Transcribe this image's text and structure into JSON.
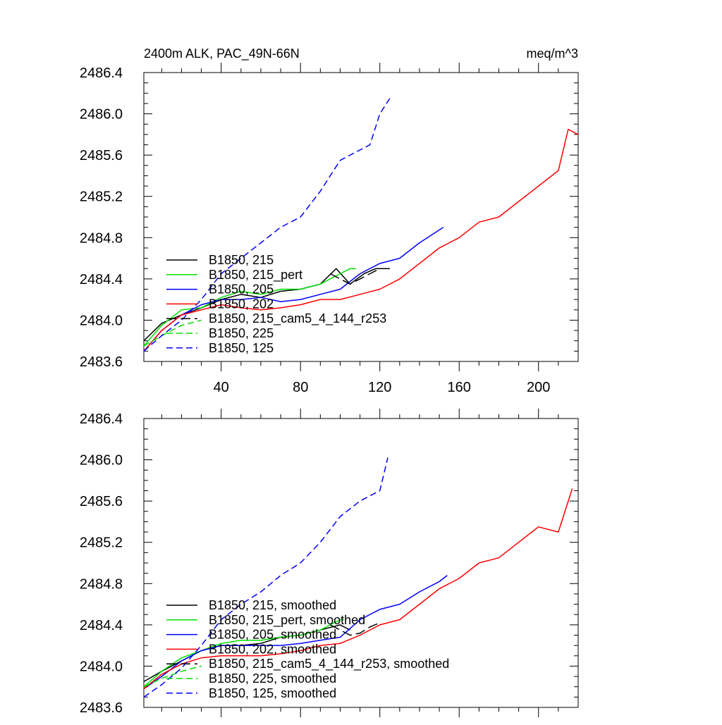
{
  "colors": {
    "black": "#000000",
    "green": "#00e000",
    "blue": "#0000ff",
    "red": "#ff0000"
  },
  "chart_data": [
    {
      "type": "line",
      "title": "2400m ALK, PAC_49N-66N",
      "units": "meq/m^3",
      "xlim": [
        1,
        220
      ],
      "ylim": [
        2483.6,
        2486.4
      ],
      "x_ticks": [
        "40",
        "80",
        "120",
        "160",
        "200"
      ],
      "x_tick_values": [
        40,
        80,
        120,
        160,
        200
      ],
      "y_ticks": [
        "2483.6",
        "2484.0",
        "2484.4",
        "2484.8",
        "2485.2",
        "2485.6",
        "2486.0",
        "2486.4"
      ],
      "y_tick_values": [
        2483.6,
        2484.0,
        2484.4,
        2484.8,
        2485.2,
        2485.6,
        2486.0,
        2486.4
      ],
      "legend_position": "lower-left",
      "series": [
        {
          "name": "B1850, 215",
          "color": "black",
          "dash": "solid",
          "x": [
            1,
            10,
            20,
            30,
            40,
            50,
            60,
            70,
            80,
            90,
            98,
            105,
            112,
            118,
            125
          ],
          "y": [
            2483.8,
            2483.97,
            2484.05,
            2484.12,
            2484.2,
            2484.25,
            2484.22,
            2484.28,
            2484.3,
            2484.35,
            2484.5,
            2484.35,
            2484.45,
            2484.5,
            2484.5
          ]
        },
        {
          "name": "B1850, 215_pert",
          "color": "green",
          "dash": "solid",
          "x": [
            1,
            10,
            20,
            30,
            40,
            50,
            60,
            70,
            80,
            90,
            100,
            105,
            108
          ],
          "y": [
            2483.75,
            2483.95,
            2484.1,
            2484.12,
            2484.22,
            2484.28,
            2484.25,
            2484.3,
            2484.3,
            2484.35,
            2484.45,
            2484.5,
            2484.5
          ]
        },
        {
          "name": "B1850, 205",
          "color": "blue",
          "dash": "solid",
          "x": [
            1,
            10,
            20,
            30,
            40,
            50,
            60,
            70,
            80,
            90,
            100,
            110,
            120,
            130,
            140,
            148,
            152
          ],
          "y": [
            2483.7,
            2483.9,
            2484.05,
            2484.15,
            2484.2,
            2484.2,
            2484.22,
            2484.18,
            2484.2,
            2484.25,
            2484.3,
            2484.45,
            2484.55,
            2484.6,
            2484.75,
            2484.85,
            2484.9
          ]
        },
        {
          "name": "B1850, 202",
          "color": "red",
          "dash": "solid",
          "x": [
            1,
            10,
            20,
            30,
            40,
            50,
            60,
            70,
            80,
            90,
            100,
            110,
            120,
            130,
            140,
            150,
            160,
            170,
            180,
            190,
            200,
            210,
            215,
            220
          ],
          "y": [
            2483.7,
            2483.9,
            2484.05,
            2484.1,
            2484.15,
            2484.12,
            2484.1,
            2484.12,
            2484.15,
            2484.2,
            2484.2,
            2484.25,
            2484.3,
            2484.4,
            2484.55,
            2484.7,
            2484.8,
            2484.95,
            2485.0,
            2485.15,
            2485.3,
            2485.45,
            2485.85,
            2485.8
          ]
        },
        {
          "name": "B1850, 215_cam5_4_144_r253",
          "color": "black",
          "dash": "longdash",
          "x": [
            95,
            100,
            105,
            110,
            115,
            120,
            125
          ],
          "y": [
            2484.45,
            2484.4,
            2484.35,
            2484.4,
            2484.45,
            2484.5,
            2484.5
          ]
        },
        {
          "name": "B1850, 225",
          "color": "green",
          "dash": "dash",
          "x": [
            1,
            10,
            20,
            30
          ],
          "y": [
            2483.75,
            2483.85,
            2483.95,
            2484.0
          ]
        },
        {
          "name": "B1850, 125",
          "color": "blue",
          "dash": "dash",
          "x": [
            1,
            10,
            20,
            30,
            40,
            50,
            60,
            70,
            80,
            90,
            100,
            110,
            115,
            120,
            125
          ],
          "y": [
            2483.7,
            2483.85,
            2484.0,
            2484.2,
            2484.45,
            2484.6,
            2484.75,
            2484.9,
            2485.0,
            2485.25,
            2485.55,
            2485.65,
            2485.7,
            2486.0,
            2486.15
          ]
        }
      ]
    },
    {
      "type": "line",
      "xlim": [
        1,
        220
      ],
      "ylim": [
        2483.6,
        2486.4
      ],
      "y_ticks": [
        "2483.6",
        "2484.0",
        "2484.4",
        "2484.8",
        "2485.2",
        "2485.6",
        "2486.0",
        "2486.4"
      ],
      "y_tick_values": [
        2483.6,
        2484.0,
        2484.4,
        2484.8,
        2485.2,
        2485.6,
        2486.0,
        2486.4
      ],
      "x_tick_values": [
        40,
        80,
        120,
        160,
        200
      ],
      "legend_position": "lower-left",
      "series": [
        {
          "name": "B1850, 215, smoothed",
          "color": "black",
          "dash": "solid",
          "x": [
            1,
            10,
            20,
            30,
            40,
            50,
            60,
            70,
            80,
            90,
            100,
            105
          ],
          "y": [
            2483.85,
            2483.95,
            2484.05,
            2484.15,
            2484.2,
            2484.2,
            2484.22,
            2484.28,
            2484.3,
            2484.35,
            2484.4,
            2484.35
          ]
        },
        {
          "name": "B1850, 215_pert, smoothed",
          "color": "green",
          "dash": "solid",
          "x": [
            1,
            10,
            20,
            30,
            40,
            50,
            60,
            70,
            80,
            90,
            100,
            102
          ],
          "y": [
            2483.8,
            2483.95,
            2484.08,
            2484.15,
            2484.22,
            2484.25,
            2484.25,
            2484.28,
            2484.3,
            2484.35,
            2484.45,
            2484.45
          ]
        },
        {
          "name": "B1850, 205, smoothed",
          "color": "blue",
          "dash": "solid",
          "x": [
            1,
            10,
            20,
            30,
            40,
            50,
            60,
            70,
            80,
            90,
            100,
            110,
            120,
            130,
            140,
            150,
            154
          ],
          "y": [
            2483.78,
            2483.9,
            2484.05,
            2484.15,
            2484.2,
            2484.2,
            2484.2,
            2484.2,
            2484.22,
            2484.25,
            2484.28,
            2484.45,
            2484.55,
            2484.6,
            2484.72,
            2484.82,
            2484.88
          ]
        },
        {
          "name": "B1850, 202, smoothed",
          "color": "red",
          "dash": "solid",
          "x": [
            1,
            10,
            20,
            30,
            40,
            50,
            60,
            70,
            80,
            90,
            100,
            110,
            120,
            130,
            140,
            150,
            160,
            170,
            180,
            190,
            200,
            210,
            217
          ],
          "y": [
            2483.78,
            2483.92,
            2484.02,
            2484.08,
            2484.1,
            2484.1,
            2484.1,
            2484.12,
            2484.15,
            2484.2,
            2484.22,
            2484.3,
            2484.4,
            2484.45,
            2484.6,
            2484.75,
            2484.85,
            2485.0,
            2485.05,
            2485.2,
            2485.35,
            2485.3,
            2485.72
          ]
        },
        {
          "name": "B1850, 215_cam5_4_144_r253, smoothed",
          "color": "black",
          "dash": "longdash",
          "x": [
            95,
            100,
            105,
            110,
            115,
            120
          ],
          "y": [
            2484.4,
            2484.35,
            2484.3,
            2484.32,
            2484.38,
            2484.42
          ]
        },
        {
          "name": "B1850, 225, smoothed",
          "color": "green",
          "dash": "dash",
          "x": [
            1,
            10,
            20,
            30
          ],
          "y": [
            2483.8,
            2483.88,
            2483.95,
            2484.0
          ]
        },
        {
          "name": "B1850, 125, smoothed",
          "color": "blue",
          "dash": "dash",
          "x": [
            1,
            10,
            20,
            30,
            40,
            50,
            60,
            70,
            80,
            90,
            100,
            110,
            120,
            124
          ],
          "y": [
            2483.7,
            2483.82,
            2483.98,
            2484.2,
            2484.45,
            2484.6,
            2484.72,
            2484.88,
            2485.0,
            2485.2,
            2485.45,
            2485.6,
            2485.7,
            2486.02
          ]
        }
      ]
    }
  ]
}
